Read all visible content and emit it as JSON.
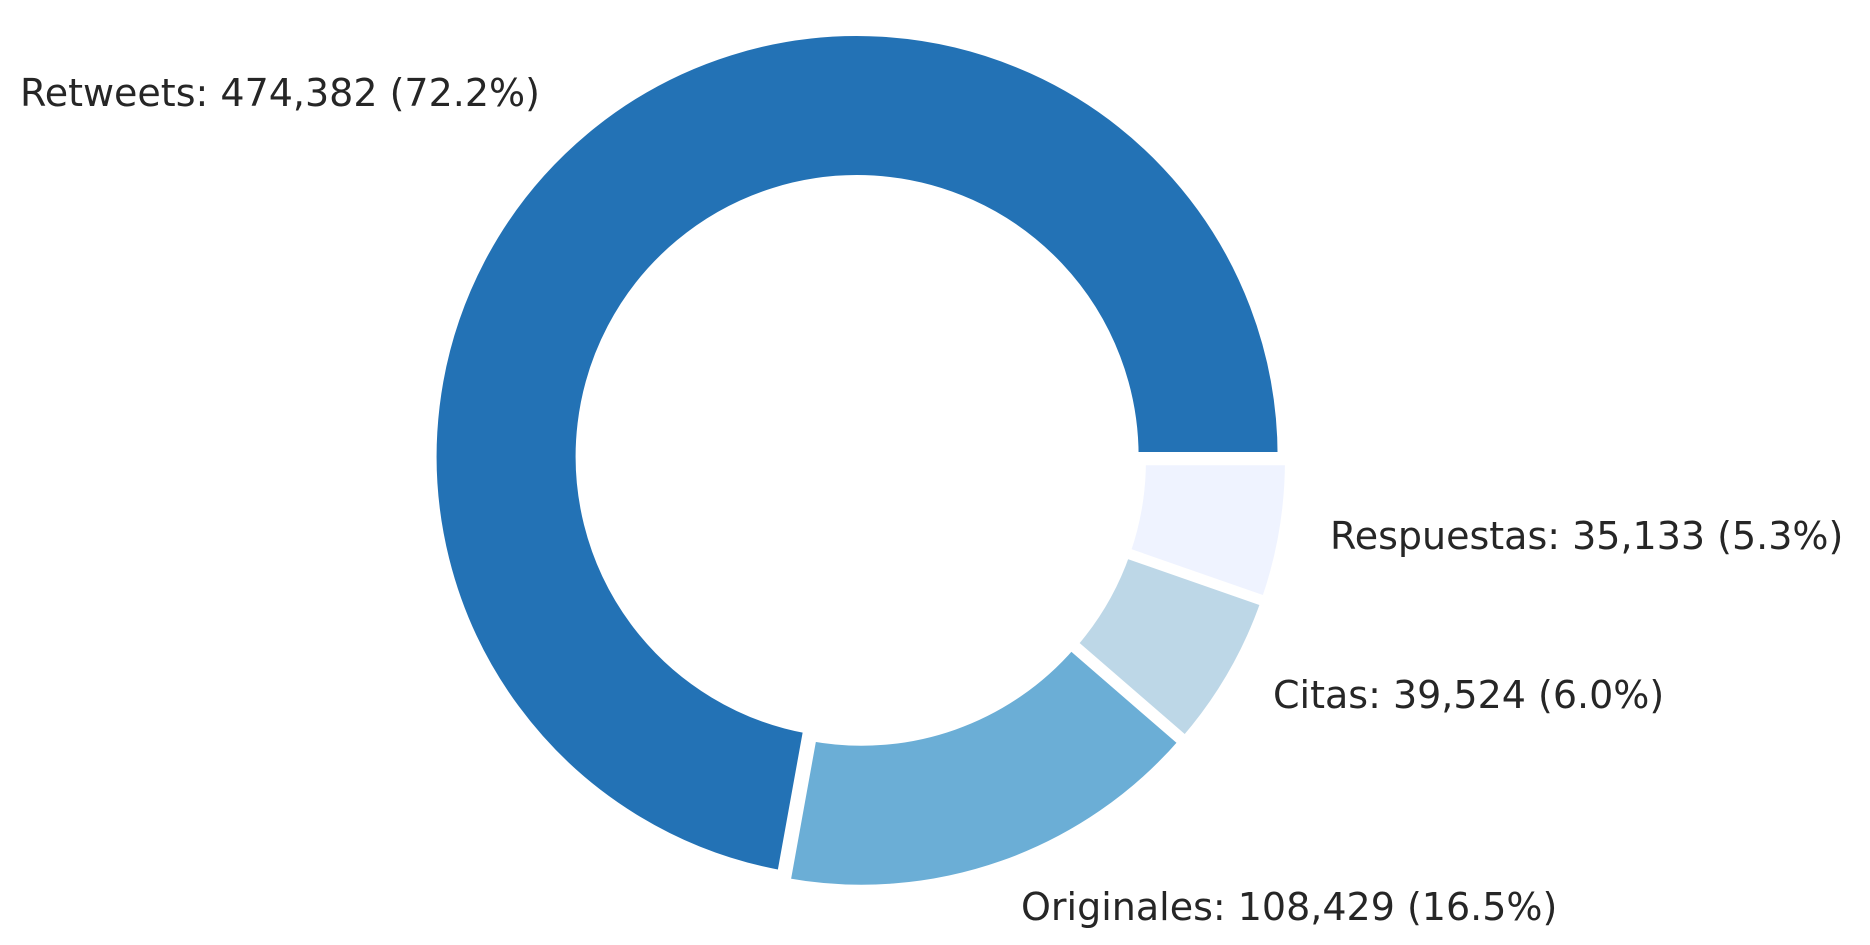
{
  "chart_data": {
    "type": "pie",
    "style": "donut",
    "title": "",
    "slices": [
      {
        "name": "Retweets",
        "value": 474382,
        "percent": 72.2,
        "label": "Retweets: 474,382 (72.2%)",
        "color": "#2372b5"
      },
      {
        "name": "Originales",
        "value": 108429,
        "percent": 16.5,
        "label": "Originales: 108,429 (16.5%)",
        "color": "#6baed6"
      },
      {
        "name": "Citas",
        "value": 39524,
        "percent": 6.0,
        "label": "Citas: 39,524 (6.0%)",
        "color": "#bdd7e7"
      },
      {
        "name": "Respuestas",
        "value": 35133,
        "percent": 5.3,
        "label": "Respuestas: 35,133 (5.3%)",
        "color": "#eff3ff"
      }
    ]
  }
}
